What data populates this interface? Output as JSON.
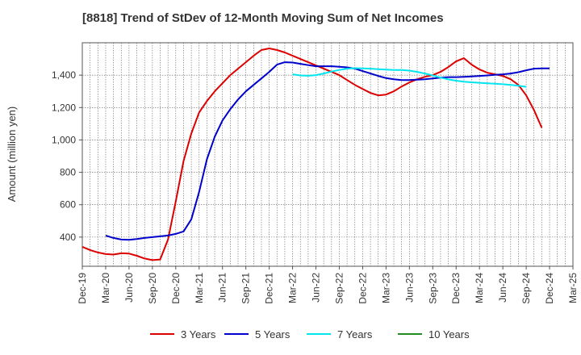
{
  "chart_data": {
    "type": "line",
    "title": "[8818]  Trend of StDev of 12-Month Moving Sum of Net Incomes",
    "ylabel": "Amount (million yen)",
    "xlabel": "",
    "ylim": [
      220,
      1600
    ],
    "y_ticks": [
      400,
      600,
      800,
      1000,
      1200,
      1400
    ],
    "y_tick_labels": [
      "400",
      "600",
      "800",
      "1,000",
      "1,200",
      "1,400"
    ],
    "x_tick_labels": [
      "Dec-19",
      "Mar-20",
      "Jun-20",
      "Sep-20",
      "Dec-20",
      "Mar-21",
      "Jun-21",
      "Sep-21",
      "Dec-21",
      "Mar-22",
      "Jun-22",
      "Sep-22",
      "Dec-22",
      "Mar-23",
      "Jun-23",
      "Sep-23",
      "Dec-23",
      "Mar-24",
      "Jun-24",
      "Sep-24",
      "Dec-24",
      "Mar-25"
    ],
    "grid": true,
    "legend_position": "bottom",
    "series": [
      {
        "name": "3 Years",
        "color": "#dd0000",
        "start_index": 0,
        "values": [
          340,
          320,
          305,
          295,
          292,
          300,
          298,
          285,
          268,
          258,
          262,
          385,
          620,
          870,
          1040,
          1170,
          1240,
          1300,
          1350,
          1400,
          1440,
          1480,
          1520,
          1555,
          1565,
          1555,
          1540,
          1520,
          1500,
          1480,
          1460,
          1440,
          1420,
          1400,
          1370,
          1340,
          1315,
          1290,
          1275,
          1280,
          1300,
          1330,
          1355,
          1375,
          1390,
          1400,
          1420,
          1450,
          1485,
          1505,
          1465,
          1435,
          1415,
          1405,
          1395,
          1375,
          1340,
          1275,
          1185,
          1075
        ]
      },
      {
        "name": "5 Years",
        "color": "#0000cc",
        "start_index": 3,
        "values": [
          410,
          395,
          385,
          383,
          388,
          395,
          400,
          405,
          410,
          420,
          435,
          510,
          680,
          880,
          1020,
          1120,
          1190,
          1250,
          1300,
          1340,
          1380,
          1420,
          1465,
          1480,
          1478,
          1470,
          1462,
          1455,
          1455,
          1455,
          1452,
          1448,
          1440,
          1425,
          1410,
          1395,
          1382,
          1375,
          1370,
          1370,
          1372,
          1375,
          1380,
          1385,
          1388,
          1388,
          1390,
          1392,
          1395,
          1398,
          1402,
          1405,
          1410,
          1418,
          1430,
          1440,
          1442,
          1442
        ]
      },
      {
        "name": "7 Years",
        "color": "#00e5ee",
        "start_index": 27,
        "values": [
          1405,
          1398,
          1396,
          1400,
          1410,
          1422,
          1432,
          1440,
          1443,
          1442,
          1440,
          1437,
          1434,
          1432,
          1432,
          1428,
          1420,
          1410,
          1398,
          1385,
          1374,
          1366,
          1360,
          1356,
          1353,
          1350,
          1347,
          1344,
          1340,
          1335,
          1328
        ]
      },
      {
        "name": "10 Years",
        "color": "#228b22",
        "start_index": 0,
        "values": []
      }
    ]
  }
}
